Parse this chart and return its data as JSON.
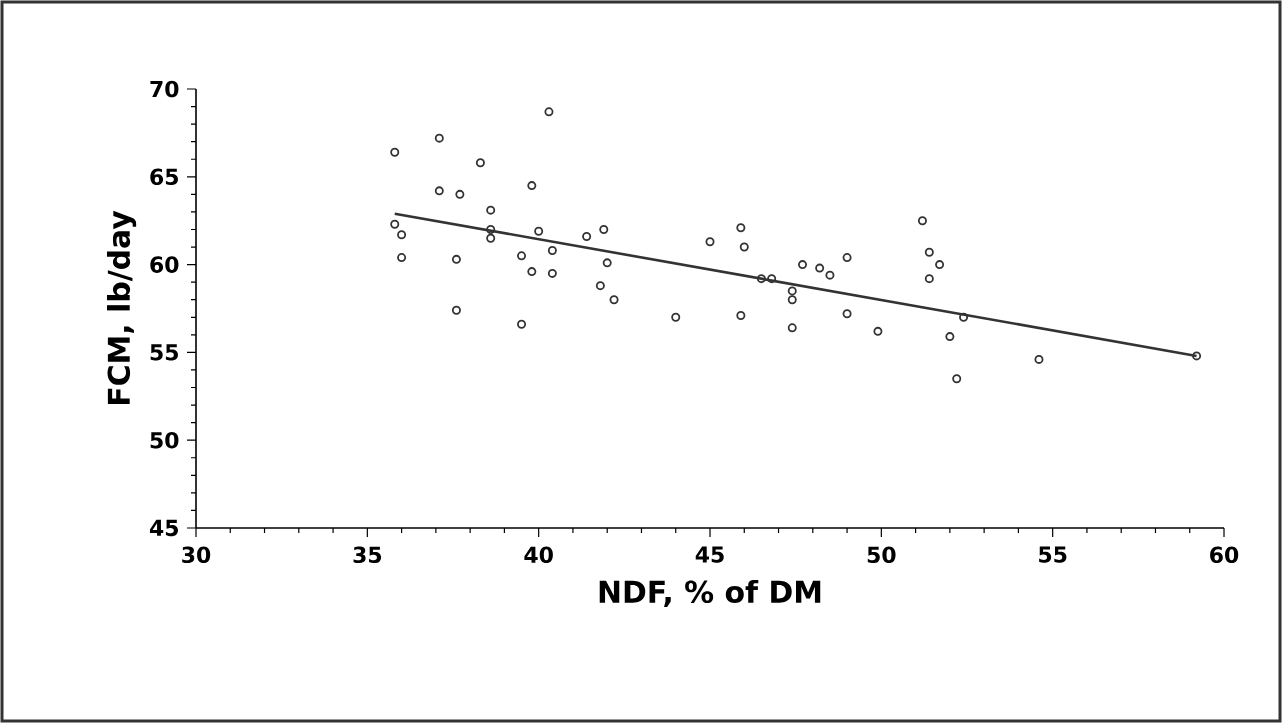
{
  "chart_data": {
    "type": "scatter",
    "xlabel": "NDF, % of DM",
    "ylabel": "FCM, lb/day",
    "xlim": [
      30,
      60
    ],
    "ylim": [
      45,
      70
    ],
    "xticks": [
      30,
      35,
      40,
      45,
      50,
      55,
      60
    ],
    "yticks": [
      45,
      50,
      55,
      60,
      65,
      70
    ],
    "grid": false,
    "marker": "circle",
    "series": [
      {
        "color": "#333333",
        "x": [
          40.3,
          37.1,
          35.8,
          38.3,
          39.8,
          37.1,
          37.7,
          38.6,
          35.8,
          36.0,
          38.6,
          38.6,
          40.0,
          41.9,
          41.4,
          40.4,
          39.5,
          36.0,
          37.6,
          42.0,
          39.8,
          40.4,
          41.8,
          42.2,
          37.6,
          39.5,
          45.0,
          45.9,
          46.0,
          46.5,
          46.8,
          47.4,
          47.4,
          47.7,
          48.2,
          48.5,
          49.0,
          44.0,
          45.9,
          47.4,
          49.0,
          49.9,
          52.4,
          52.0,
          52.2,
          51.2,
          51.4,
          51.7,
          51.4,
          54.6,
          59.2
        ],
        "values": [
          68.7,
          67.2,
          66.4,
          65.8,
          64.5,
          64.2,
          64.0,
          63.1,
          62.3,
          61.7,
          62.0,
          61.5,
          61.9,
          62.0,
          61.6,
          60.8,
          60.5,
          60.4,
          60.3,
          60.1,
          59.6,
          59.5,
          58.8,
          58.0,
          57.4,
          56.6,
          61.3,
          62.1,
          61.0,
          59.2,
          59.2,
          58.5,
          58.0,
          60.0,
          59.8,
          59.4,
          60.4,
          57.0,
          57.1,
          56.4,
          57.2,
          56.2,
          57.0,
          55.9,
          53.5,
          62.5,
          60.7,
          60.0,
          59.2,
          54.6,
          54.8
        ]
      },
      {
        "type": "line",
        "color": "#333333",
        "marker": "none",
        "x": [
          35.8,
          59.2
        ],
        "values": [
          62.9,
          54.8
        ]
      }
    ]
  }
}
